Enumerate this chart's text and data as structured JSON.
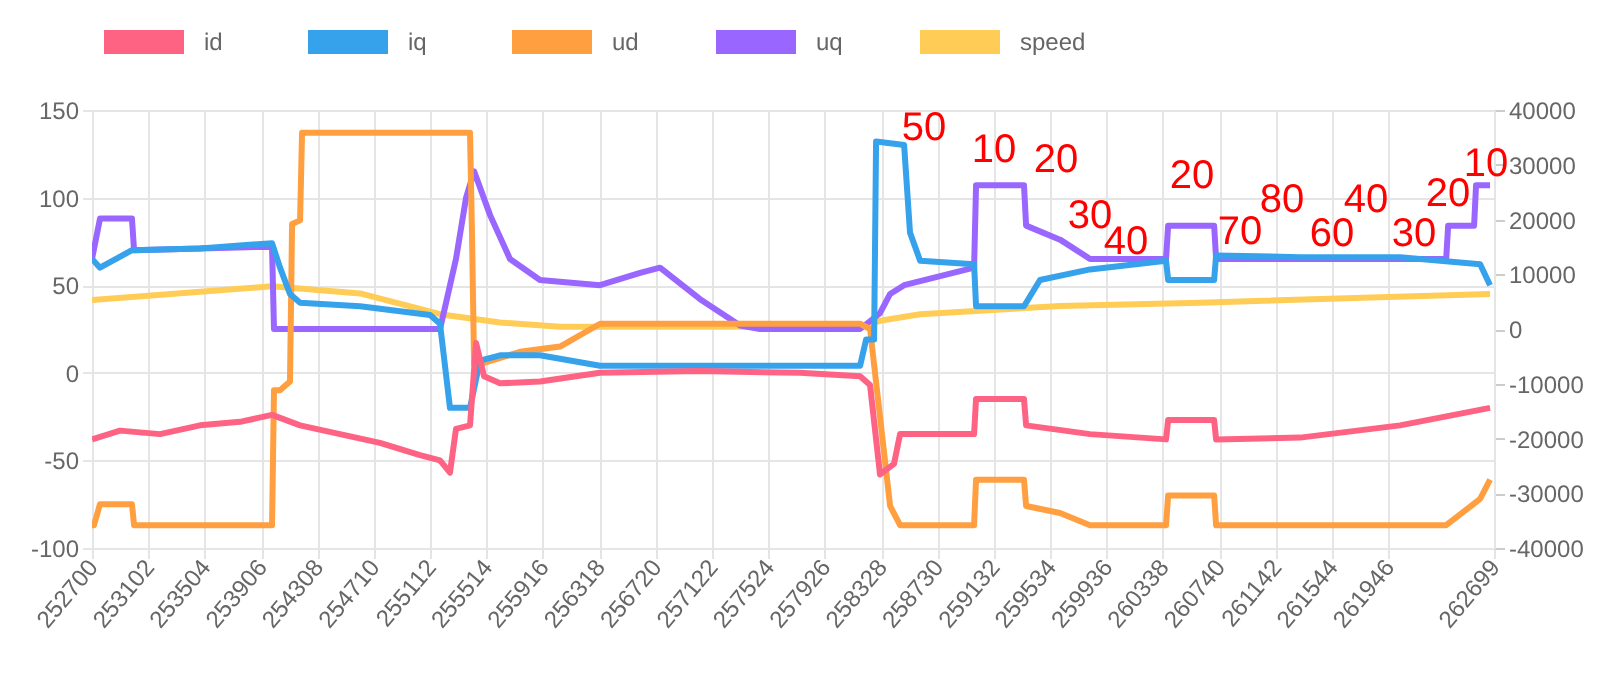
{
  "chart_data": {
    "type": "line",
    "legend": "top",
    "grid": true,
    "xlim": [
      252700,
      262699
    ],
    "xticks": [
      252700,
      253102,
      253504,
      253906,
      254308,
      254710,
      255112,
      255514,
      255916,
      256318,
      256720,
      257122,
      257524,
      257926,
      258328,
      258730,
      259132,
      259534,
      259936,
      260338,
      260740,
      261142,
      261544,
      261946,
      262699
    ],
    "ylim": [
      -100,
      150
    ],
    "yticks": [
      -100,
      -50,
      0,
      50,
      100,
      150
    ],
    "y2lim": [
      -40000,
      40000
    ],
    "y2ticks": [
      -40000,
      -30000,
      -20000,
      -10000,
      0,
      10000,
      20000,
      30000,
      40000
    ],
    "series": [
      {
        "name": "id",
        "color": "#ff6384",
        "x": [
          252700,
          252900,
          253185,
          253470,
          253756,
          253984,
          254184,
          254469,
          254754,
          255039,
          255182,
          255253,
          255296,
          255396,
          255439,
          255496,
          255610,
          255895,
          256323,
          257037,
          257750,
          258178,
          258249,
          258320,
          258420,
          258463,
          258991,
          259005,
          259347,
          259362,
          259818,
          260360,
          260375,
          260703,
          260717,
          261316,
          262029,
          262671
        ],
        "values": [
          -38,
          -33,
          -35,
          -30,
          -28,
          -24,
          -30,
          -35,
          -40,
          -47,
          -50,
          -57,
          -32,
          -30,
          17,
          -2,
          -6,
          -5,
          0,
          1,
          0,
          -2,
          -7,
          -58,
          -52,
          -35,
          -35,
          -15,
          -15,
          -30,
          -35,
          -38,
          -27,
          -27,
          -38,
          -37,
          -30,
          -20
        ]
      },
      {
        "name": "iq",
        "color": "#36a2eb",
        "x": [
          252700,
          252757,
          252985,
          253470,
          253984,
          254041,
          254112,
          254184,
          254612,
          255111,
          255182,
          255253,
          255396,
          255467,
          255610,
          255895,
          256323,
          257037,
          258178,
          258221,
          258278,
          258292,
          258492,
          258534,
          258606,
          258991,
          259005,
          259347,
          259461,
          259818,
          260360,
          260375,
          260703,
          260717,
          261316,
          262029,
          262600,
          262671
        ],
        "values": [
          65,
          60,
          70,
          71,
          74,
          60,
          45,
          40,
          38,
          33,
          28,
          -20,
          -20,
          7,
          10,
          10,
          4,
          4,
          4,
          19,
          19,
          132,
          130,
          80,
          64,
          62,
          38,
          38,
          53,
          59,
          64,
          53,
          53,
          67,
          66,
          66,
          62,
          50
        ]
      },
      {
        "name": "ud",
        "color": "#ff9f40",
        "x": [
          252700,
          252714,
          252757,
          252985,
          253000,
          253984,
          253998,
          254041,
          254112,
          254127,
          254184,
          254198,
          255396,
          255410,
          255425,
          255467,
          255753,
          256038,
          256323,
          258178,
          258249,
          258392,
          258463,
          258991,
          259005,
          259347,
          259362,
          259604,
          259818,
          260360,
          260375,
          260703,
          260717,
          262358,
          262600,
          262671
        ],
        "values": [
          -87,
          -87,
          -75,
          -75,
          -87,
          -87,
          -10,
          -10,
          -5,
          85,
          87,
          137,
          137,
          80,
          5,
          5,
          12,
          15,
          28,
          28,
          25,
          -76,
          -87,
          -87,
          -61,
          -61,
          -76,
          -80,
          -87,
          -87,
          -70,
          -70,
          -87,
          -87,
          -72,
          -61
        ]
      },
      {
        "name": "uq",
        "color": "#9966ff",
        "x": [
          252700,
          252757,
          252985,
          253000,
          253984,
          253998,
          255111,
          255182,
          255225,
          255296,
          255368,
          255425,
          255539,
          255681,
          255895,
          256323,
          256609,
          256751,
          257037,
          257322,
          257465,
          258178,
          258320,
          258392,
          258492,
          258991,
          259005,
          259347,
          259362,
          259604,
          259818,
          260360,
          260375,
          260703,
          260717,
          262358,
          262372,
          262557,
          262571,
          262671
        ],
        "values": [
          65,
          88,
          88,
          70,
          72,
          25,
          25,
          25,
          40,
          65,
          100,
          115,
          90,
          65,
          53,
          50,
          57,
          60,
          42,
          27,
          25,
          25,
          34,
          45,
          50,
          60,
          107,
          107,
          84,
          76,
          65,
          65,
          84,
          84,
          65,
          65,
          84,
          84,
          107,
          107
        ]
      },
      {
        "name": "speed",
        "color": "#ffcd56",
        "axis": "y2",
        "x": [
          252700,
          253984,
          254612,
          255182,
          255610,
          256038,
          258178,
          258320,
          258606,
          259604,
          260603,
          262671
        ],
        "values": [
          5300,
          7800,
          6500,
          2700,
          1200,
          400,
          400,
          1500,
          2700,
          4200,
          4800,
          6400
        ]
      }
    ],
    "annotations": [
      "50",
      "10",
      "20",
      "30",
      "40",
      "20",
      "70",
      "80",
      "60",
      "40",
      "30",
      "20",
      "10"
    ]
  }
}
